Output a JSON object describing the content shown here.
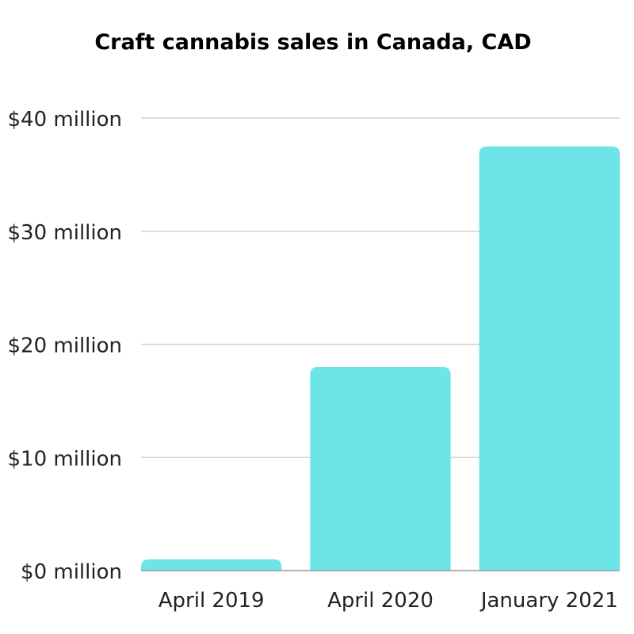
{
  "chart_data": {
    "type": "bar",
    "title": "Craft cannabis sales in Canada, CAD",
    "xlabel": "",
    "ylabel": "",
    "categories": [
      "April 2019",
      "April 2020",
      "January 2021"
    ],
    "values": [
      1,
      18,
      37.5
    ],
    "ylim": [
      0,
      40
    ],
    "yticks": [
      0,
      10,
      20,
      30,
      40
    ],
    "ytick_labels": [
      "$0 million",
      "$10 million",
      "$20 million",
      "$30 million",
      "$40 million"
    ],
    "grid": true,
    "legend": "none",
    "bar_color": "#6ce4e8",
    "grid_color": "#d3d3d3",
    "axis_color": "#9a9a9a"
  }
}
